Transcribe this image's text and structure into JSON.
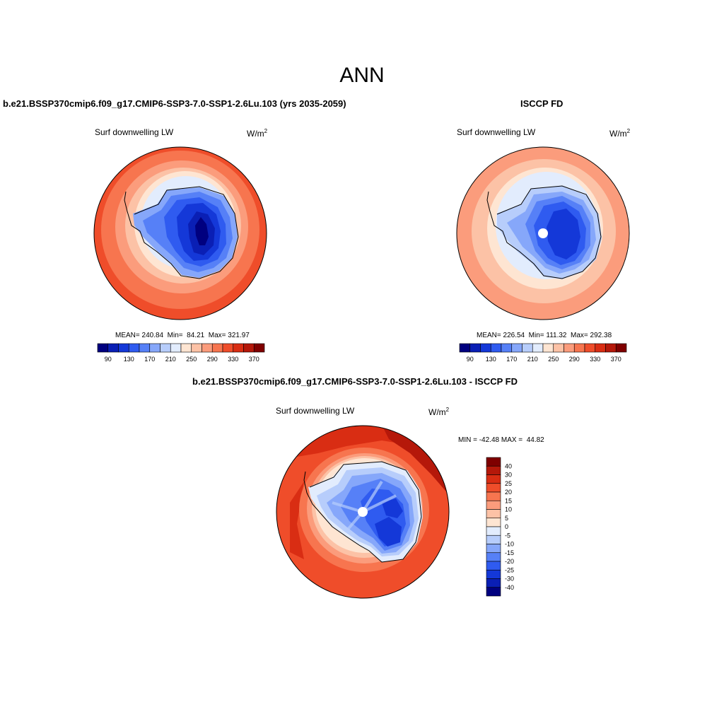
{
  "page": {
    "title": "ANN"
  },
  "panels": {
    "model": {
      "title": "b.e21.BSSP370cmip6.f09_g17.CMIP6-SSP3-7.0-SSP1-2.6Lu.103 (yrs 2035-2059)",
      "variable": "Surf downwelling LW",
      "units_base": "W/m",
      "units_exp": "2",
      "stats": "MEAN= 240.84  Min=  84.21  Max= 321.97",
      "colorbar": {
        "colors": [
          "#00007f",
          "#0a1fb5",
          "#1438d8",
          "#2f5bf0",
          "#5680f7",
          "#86a7fa",
          "#b7cdfb",
          "#e2ecfd",
          "#fee5d2",
          "#fcc2a6",
          "#fb9c7c",
          "#f7754f",
          "#ef4d2a",
          "#d92d13",
          "#b5180a",
          "#7f0000"
        ],
        "labels": [
          "90",
          "130",
          "170",
          "210",
          "250",
          "290",
          "330",
          "370"
        ]
      }
    },
    "obs": {
      "title": "ISCCP FD",
      "variable": "Surf downwelling LW",
      "units_base": "W/m",
      "units_exp": "2",
      "stats": "MEAN= 226.54  Min= 111.32  Max= 292.38",
      "colorbar": {
        "colors": [
          "#00007f",
          "#0a1fb5",
          "#1438d8",
          "#2f5bf0",
          "#5680f7",
          "#86a7fa",
          "#b7cdfb",
          "#e2ecfd",
          "#fee5d2",
          "#fcc2a6",
          "#fb9c7c",
          "#f7754f",
          "#ef4d2a",
          "#d92d13",
          "#b5180a",
          "#7f0000"
        ],
        "labels": [
          "90",
          "130",
          "170",
          "210",
          "250",
          "290",
          "330",
          "370"
        ]
      }
    },
    "diff": {
      "title": "b.e21.BSSP370cmip6.f09_g17.CMIP6-SSP3-7.0-SSP1-2.6Lu.103 - ISCCP FD",
      "variable": "Surf downwelling LW",
      "units_base": "W/m",
      "units_exp": "2",
      "minmax": "MIN = -42.48 MAX =  44.82",
      "colorbar": {
        "colors": [
          "#7f0000",
          "#b5180a",
          "#d92d13",
          "#ef4d2a",
          "#f7754f",
          "#fb9c7c",
          "#fcc2a6",
          "#fee5d2",
          "#e2ecfd",
          "#b7cdfb",
          "#86a7fa",
          "#5680f7",
          "#2f5bf0",
          "#1438d8",
          "#0a1fb5",
          "#00007f"
        ],
        "labels": [
          "40",
          "30",
          "25",
          "20",
          "15",
          "10",
          "5",
          "0",
          "-5",
          "-10",
          "-15",
          "-20",
          "-25",
          "-30",
          "-40"
        ]
      }
    }
  }
}
